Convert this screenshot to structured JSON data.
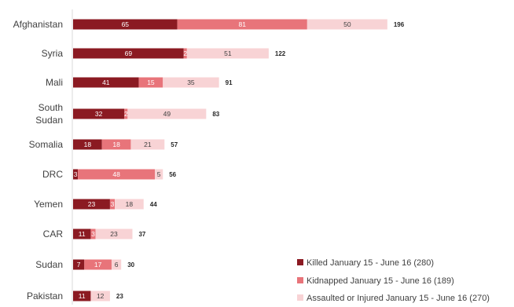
{
  "chart_data": {
    "type": "bar",
    "orientation": "horizontal",
    "stacked": true,
    "title": "",
    "xlabel": "",
    "ylabel": "",
    "xlim": [
      0,
      196
    ],
    "grid": false,
    "legend_position": "bottom-right",
    "categories": [
      "Afghanistan",
      "Syria",
      "Mali",
      "South Sudan",
      "Somalia",
      "DRC",
      "Yemen",
      "CAR",
      "Sudan",
      "Pakistan"
    ],
    "series": [
      {
        "name": "Killed January 15 - June 16 (280)",
        "color": "#8b1a22",
        "label_color": "#ffffff",
        "values": [
          65,
          69,
          41,
          32,
          18,
          3,
          23,
          11,
          7,
          11
        ]
      },
      {
        "name": "Kidnapped January 15 - June 16 (189)",
        "color": "#e8747a",
        "label_color": "#ffffff",
        "values": [
          81,
          2,
          15,
          2,
          18,
          48,
          3,
          3,
          17,
          0
        ]
      },
      {
        "name": "Assaulted or Injured January 15 - June 16 (270)",
        "color": "#f8d3d5",
        "label_color": "#404040",
        "values": [
          50,
          51,
          35,
          49,
          21,
          5,
          18,
          23,
          6,
          12
        ]
      }
    ],
    "totals": [
      196,
      122,
      91,
      83,
      57,
      56,
      44,
      37,
      30,
      23
    ]
  }
}
